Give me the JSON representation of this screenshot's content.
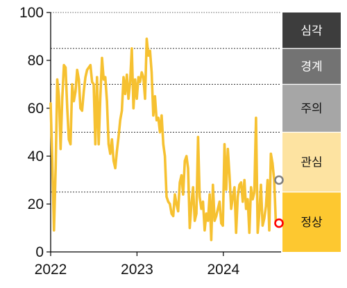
{
  "chart_data": {
    "type": "line",
    "ylim": [
      0,
      100
    ],
    "y_ticks": [
      0,
      20,
      40,
      60,
      80,
      100
    ],
    "x_range": [
      "2022-01-01",
      "2024-09-01"
    ],
    "x_ticks": [
      {
        "date": "2022-01-01",
        "label": "2022"
      },
      {
        "date": "2023-01-01",
        "label": "2023"
      },
      {
        "date": "2024-01-01",
        "label": "2024"
      }
    ],
    "threshold_lines": [
      25,
      50,
      70,
      85,
      100
    ],
    "line_color": "#f6c131",
    "bands": [
      {
        "label": "심각",
        "from": 85,
        "to": 100,
        "color": "#3d3d3d",
        "text_color": "#ffffff"
      },
      {
        "label": "경계",
        "from": 70,
        "to": 85,
        "color": "#737373",
        "text_color": "#ffffff"
      },
      {
        "label": "주의",
        "from": 50,
        "to": 70,
        "color": "#a6a6a6",
        "text_color": "#111111"
      },
      {
        "label": "관심",
        "from": 25,
        "to": 50,
        "color": "#fde3a1",
        "text_color": "#111111"
      },
      {
        "label": "정상",
        "from": 0,
        "to": 25,
        "color": "#fdc830",
        "text_color": "#111111"
      }
    ],
    "markers": [
      {
        "value": 30,
        "stroke": "#808080"
      },
      {
        "value": 12,
        "stroke": "#ff0000"
      }
    ],
    "series": [
      {
        "points": [
          [
            "2022-01-01",
            62
          ],
          [
            "2022-01-08",
            37
          ],
          [
            "2022-01-15",
            9
          ],
          [
            "2022-01-22",
            35
          ],
          [
            "2022-01-29",
            72
          ],
          [
            "2022-02-05",
            65
          ],
          [
            "2022-02-12",
            43
          ],
          [
            "2022-02-19",
            64
          ],
          [
            "2022-02-26",
            78
          ],
          [
            "2022-03-05",
            77
          ],
          [
            "2022-03-12",
            60
          ],
          [
            "2022-03-19",
            47
          ],
          [
            "2022-03-26",
            45
          ],
          [
            "2022-04-02",
            70
          ],
          [
            "2022-04-09",
            63
          ],
          [
            "2022-04-16",
            67
          ],
          [
            "2022-04-23",
            76
          ],
          [
            "2022-04-30",
            72
          ],
          [
            "2022-05-07",
            60
          ],
          [
            "2022-05-14",
            59
          ],
          [
            "2022-05-21",
            67
          ],
          [
            "2022-05-28",
            73
          ],
          [
            "2022-06-04",
            76
          ],
          [
            "2022-06-11",
            77
          ],
          [
            "2022-06-18",
            78
          ],
          [
            "2022-06-25",
            71
          ],
          [
            "2022-07-02",
            70
          ],
          [
            "2022-07-09",
            45
          ],
          [
            "2022-07-16",
            73
          ],
          [
            "2022-07-23",
            45
          ],
          [
            "2022-07-30",
            65
          ],
          [
            "2022-08-06",
            81
          ],
          [
            "2022-08-13",
            72
          ],
          [
            "2022-08-20",
            73
          ],
          [
            "2022-08-27",
            63
          ],
          [
            "2022-09-03",
            45
          ],
          [
            "2022-09-10",
            41
          ],
          [
            "2022-09-17",
            47
          ],
          [
            "2022-09-24",
            38
          ],
          [
            "2022-10-01",
            35
          ],
          [
            "2022-10-08",
            42
          ],
          [
            "2022-10-15",
            48
          ],
          [
            "2022-10-22",
            55
          ],
          [
            "2022-10-29",
            59
          ],
          [
            "2022-11-05",
            73
          ],
          [
            "2022-11-12",
            66
          ],
          [
            "2022-11-19",
            74
          ],
          [
            "2022-11-26",
            64
          ],
          [
            "2022-12-03",
            71
          ],
          [
            "2022-12-10",
            85
          ],
          [
            "2022-12-17",
            60
          ],
          [
            "2022-12-24",
            72
          ],
          [
            "2022-12-31",
            64
          ],
          [
            "2023-01-07",
            73
          ],
          [
            "2023-01-14",
            71
          ],
          [
            "2023-01-21",
            75
          ],
          [
            "2023-01-28",
            73
          ],
          [
            "2023-02-04",
            64
          ],
          [
            "2023-02-11",
            89
          ],
          [
            "2023-02-18",
            82
          ],
          [
            "2023-02-25",
            84
          ],
          [
            "2023-03-04",
            75
          ],
          [
            "2023-03-11",
            57
          ],
          [
            "2023-03-18",
            65
          ],
          [
            "2023-03-25",
            55
          ],
          [
            "2023-04-01",
            56
          ],
          [
            "2023-04-08",
            50
          ],
          [
            "2023-04-15",
            57
          ],
          [
            "2023-04-22",
            45
          ],
          [
            "2023-04-29",
            40
          ],
          [
            "2023-05-06",
            23
          ],
          [
            "2023-05-13",
            21
          ],
          [
            "2023-05-20",
            20
          ],
          [
            "2023-05-27",
            16
          ],
          [
            "2023-06-03",
            15
          ],
          [
            "2023-06-10",
            24
          ],
          [
            "2023-06-17",
            20
          ],
          [
            "2023-06-24",
            17
          ],
          [
            "2023-07-01",
            29
          ],
          [
            "2023-07-08",
            32
          ],
          [
            "2023-07-15",
            24
          ],
          [
            "2023-07-22",
            38
          ],
          [
            "2023-07-29",
            40
          ],
          [
            "2023-08-05",
            35
          ],
          [
            "2023-08-12",
            10
          ],
          [
            "2023-08-19",
            20
          ],
          [
            "2023-08-26",
            27
          ],
          [
            "2023-09-02",
            13
          ],
          [
            "2023-09-09",
            16
          ],
          [
            "2023-09-16",
            48
          ],
          [
            "2023-09-23",
            23
          ],
          [
            "2023-09-30",
            18
          ],
          [
            "2023-10-07",
            21
          ],
          [
            "2023-10-14",
            9
          ],
          [
            "2023-10-21",
            16
          ],
          [
            "2023-10-28",
            13
          ],
          [
            "2023-11-04",
            24
          ],
          [
            "2023-11-11",
            5
          ],
          [
            "2023-11-18",
            28
          ],
          [
            "2023-11-25",
            13
          ],
          [
            "2023-12-02",
            15
          ],
          [
            "2023-12-09",
            18
          ],
          [
            "2023-12-16",
            21
          ],
          [
            "2023-12-23",
            12
          ],
          [
            "2023-12-30",
            11
          ],
          [
            "2024-01-06",
            45
          ],
          [
            "2024-01-13",
            26
          ],
          [
            "2024-01-20",
            43
          ],
          [
            "2024-01-27",
            32
          ],
          [
            "2024-02-03",
            18
          ],
          [
            "2024-02-10",
            23
          ],
          [
            "2024-02-17",
            27
          ],
          [
            "2024-02-24",
            8
          ],
          [
            "2024-03-02",
            23
          ],
          [
            "2024-03-09",
            28
          ],
          [
            "2024-03-16",
            29
          ],
          [
            "2024-03-23",
            21
          ],
          [
            "2024-03-30",
            30
          ],
          [
            "2024-04-06",
            18
          ],
          [
            "2024-04-13",
            22
          ],
          [
            "2024-04-20",
            8
          ],
          [
            "2024-04-27",
            27
          ],
          [
            "2024-05-04",
            22
          ],
          [
            "2024-05-11",
            25
          ],
          [
            "2024-05-18",
            56
          ],
          [
            "2024-05-25",
            8
          ],
          [
            "2024-06-01",
            16
          ],
          [
            "2024-06-08",
            28
          ],
          [
            "2024-06-15",
            11
          ],
          [
            "2024-06-22",
            14
          ],
          [
            "2024-06-29",
            19
          ],
          [
            "2024-07-06",
            30
          ],
          [
            "2024-07-13",
            9
          ],
          [
            "2024-07-20",
            41
          ],
          [
            "2024-07-27",
            37
          ],
          [
            "2024-08-03",
            30
          ],
          [
            "2024-08-10",
            12
          ]
        ]
      }
    ]
  }
}
